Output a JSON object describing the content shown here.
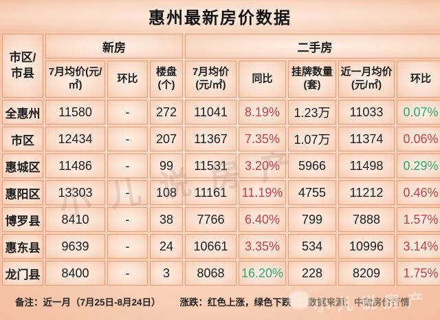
{
  "title_bar": {
    "title": "惠州最新房价数据"
  },
  "chart_data": {
    "type": "table",
    "title": "惠州最新房价数据",
    "corner_header": "市区/市县",
    "group_headers": [
      {
        "label": "新房",
        "span": 3
      },
      {
        "label": "二手房",
        "span": 5
      }
    ],
    "sub_headers": [
      "7月均价(元/㎡)",
      "环比",
      "楼盘(个)",
      "7月均价(元/㎡)",
      "同比",
      "挂牌数量(套)",
      "近一月均价(元/㎡)",
      "环比"
    ],
    "rows": [
      {
        "name": "全惠州",
        "cells": [
          {
            "t": "11580"
          },
          {
            "t": "-"
          },
          {
            "t": "272"
          },
          {
            "t": "11041"
          },
          {
            "t": "8.19%",
            "c": "red"
          },
          {
            "t": "1.23万"
          },
          {
            "t": "11033"
          },
          {
            "t": "0.07%",
            "c": "green"
          }
        ]
      },
      {
        "name": "市区",
        "cells": [
          {
            "t": "12434"
          },
          {
            "t": "-"
          },
          {
            "t": "207"
          },
          {
            "t": "11367"
          },
          {
            "t": "7.35%",
            "c": "red"
          },
          {
            "t": "1.07万"
          },
          {
            "t": "11374"
          },
          {
            "t": "0.06%",
            "c": "red"
          }
        ]
      },
      {
        "name": "惠城区",
        "cells": [
          {
            "t": "11486"
          },
          {
            "t": "-"
          },
          {
            "t": "99"
          },
          {
            "t": "11531"
          },
          {
            "t": "3.20%",
            "c": "red"
          },
          {
            "t": "5966"
          },
          {
            "t": "11498"
          },
          {
            "t": "0.29%",
            "c": "green"
          }
        ]
      },
      {
        "name": "惠阳区",
        "cells": [
          {
            "t": "13303"
          },
          {
            "t": "-"
          },
          {
            "t": "108"
          },
          {
            "t": "11161"
          },
          {
            "t": "11.19%",
            "c": "red"
          },
          {
            "t": "4755"
          },
          {
            "t": "11212"
          },
          {
            "t": "0.46%",
            "c": "red"
          }
        ]
      },
      {
        "name": "博罗县",
        "cells": [
          {
            "t": "8410"
          },
          {
            "t": "-"
          },
          {
            "t": "38"
          },
          {
            "t": "7766"
          },
          {
            "t": "6.40%",
            "c": "red"
          },
          {
            "t": "799"
          },
          {
            "t": "7888"
          },
          {
            "t": "1.57%",
            "c": "red"
          }
        ]
      },
      {
        "name": "惠东县",
        "cells": [
          {
            "t": "9639"
          },
          {
            "t": "-"
          },
          {
            "t": "24"
          },
          {
            "t": "10661"
          },
          {
            "t": "3.35%",
            "c": "red"
          },
          {
            "t": "534"
          },
          {
            "t": "10996"
          },
          {
            "t": "3.14%",
            "c": "red"
          }
        ]
      },
      {
        "name": "龙门县",
        "cells": [
          {
            "t": "8400"
          },
          {
            "t": "-"
          },
          {
            "t": "3"
          },
          {
            "t": "8068"
          },
          {
            "t": "16.20%",
            "c": "green"
          },
          {
            "t": "228"
          },
          {
            "t": "8209"
          },
          {
            "t": "1.75%",
            "c": "red"
          }
        ]
      }
    ]
  },
  "footer": {
    "note": "备注：近一月（7月25日-8月24日）",
    "legend": "涨跌：红色上涨，绿色下跌",
    "source": "数据来源：中国房价行情"
  },
  "watermark": "小儿说房产",
  "colors": {
    "red": "#d03b42",
    "green": "#2ba873",
    "background": "#f8d0b8",
    "cell_border": "#e29d76",
    "title_text": "#111111"
  }
}
